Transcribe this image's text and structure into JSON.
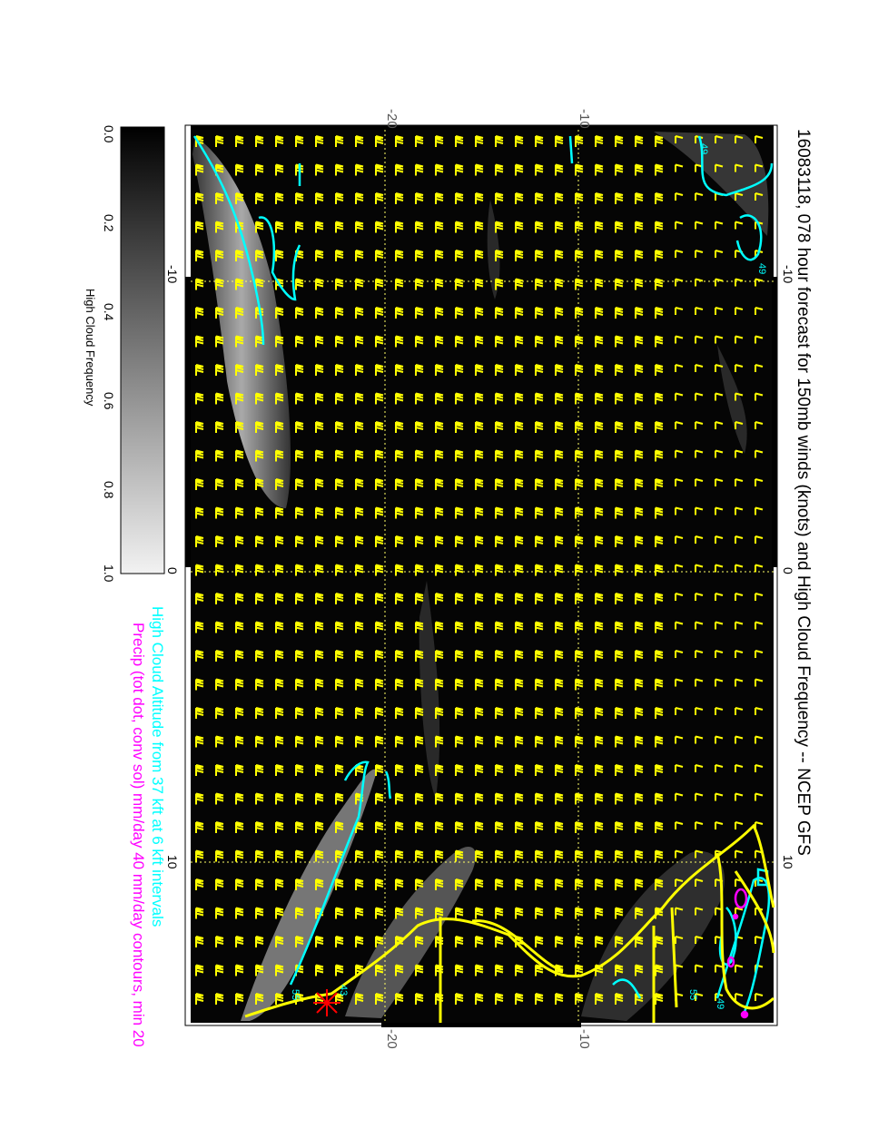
{
  "title": "16083118, 078 hour forecast for 150mb winds (knots) and High Cloud Frequency -- NCEP GFS",
  "legend": {
    "line1": "High Cloud Altitude from 37 kft at 6 kft intervals",
    "line2": "Precip (tot dot, conv sol) mm/day 40 mm/day contours, min 20"
  },
  "colorbar": {
    "label": "High Cloud Frequency",
    "ticks": [
      "0.0",
      "0.2",
      "0.4",
      "0.6",
      "0.8",
      "1.0"
    ]
  },
  "axes": {
    "top_ticks": [
      "-20",
      "-10"
    ],
    "bottom_ticks": [
      "-20",
      "-10"
    ],
    "left_ticks": [
      "-10",
      "0",
      "10"
    ],
    "right_ticks": [
      "-10",
      "0",
      "10"
    ]
  },
  "contour_labels": [
    "49",
    "49",
    "43",
    "55",
    "49",
    "55"
  ],
  "colors": {
    "barbs": "#ffff00",
    "coast": "#ffff00",
    "cloud_contour": "#00ffff",
    "precip_contour": "#ff00ff",
    "background": "#000000",
    "grid": "#ffff66"
  },
  "icons": [
    "wind-barb-icon",
    "storm-marker-icon"
  ]
}
